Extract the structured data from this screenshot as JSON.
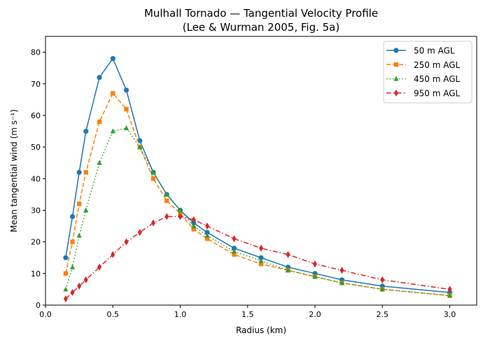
{
  "chart_data": {
    "type": "line",
    "title": "Mulhall Tornado — Tangential Velocity Profile",
    "subtitle": "(Lee & Wurman 2005, Fig. 5a)",
    "xlabel": "Radius (km)",
    "ylabel": "Mean tangential wind (m s⁻¹)",
    "xlim": [
      0,
      3.2
    ],
    "ylim": [
      0,
      85
    ],
    "xticks": [
      "0.0",
      "0.5",
      "1.0",
      "1.5",
      "2.0",
      "2.5",
      "3.0"
    ],
    "yticks": [
      "0",
      "10",
      "20",
      "30",
      "40",
      "50",
      "60",
      "70",
      "80"
    ],
    "grid": false,
    "legend_position": "top-right",
    "x": [
      0.15,
      0.2,
      0.25,
      0.3,
      0.4,
      0.5,
      0.6,
      0.7,
      0.8,
      0.9,
      1.0,
      1.1,
      1.2,
      1.4,
      1.6,
      1.8,
      2.0,
      2.2,
      2.5,
      3.0
    ],
    "series": [
      {
        "name": "50 m AGL",
        "color": "#1f77b4",
        "marker": "circle",
        "linestyle": "solid",
        "values": [
          15,
          28,
          42,
          55,
          72,
          78,
          68,
          52,
          42,
          35,
          30,
          26,
          23,
          18,
          15,
          12,
          10,
          8,
          6,
          4
        ]
      },
      {
        "name": "250 m AGL",
        "color": "#ff7f0e",
        "marker": "square",
        "linestyle": "dashed",
        "values": [
          10,
          20,
          32,
          42,
          58,
          67,
          62,
          50,
          40,
          33,
          29,
          24,
          21,
          16,
          13,
          11,
          9,
          7,
          5,
          3
        ]
      },
      {
        "name": "450 m AGL",
        "color": "#2ca02c",
        "marker": "triangle",
        "linestyle": "dotted",
        "values": [
          5,
          12,
          22,
          30,
          45,
          55,
          56,
          50,
          42,
          35,
          30,
          25,
          22,
          17,
          14,
          11,
          9,
          7,
          5,
          3
        ]
      },
      {
        "name": "950 m AGL",
        "color": "#d62728",
        "marker": "diamond",
        "linestyle": "dashdot",
        "values": [
          2,
          4,
          6,
          8,
          12,
          16,
          20,
          23,
          26,
          28,
          28,
          27,
          25,
          21,
          18,
          16,
          13,
          11,
          8,
          5
        ]
      }
    ]
  }
}
